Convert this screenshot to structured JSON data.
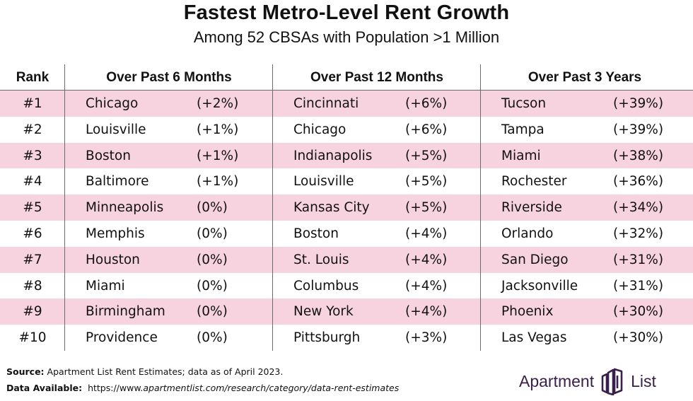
{
  "title": "Fastest Metro-Level Rent Growth",
  "subtitle": "Among 52 CBSAs with Population >1 Million",
  "headers": {
    "rank": "Rank",
    "col1": "Over Past 6 Months",
    "col2": "Over Past 12 Months",
    "col3": "Over Past 3 Years"
  },
  "rows": [
    {
      "rank": "#1",
      "c1": "Chicago",
      "p1": "(+2%)",
      "c2": "Cincinnati",
      "p2": "(+6%)",
      "c3": "Tucson",
      "p3": "(+39%)"
    },
    {
      "rank": "#2",
      "c1": "Louisville",
      "p1": "(+1%)",
      "c2": "Chicago",
      "p2": "(+6%)",
      "c3": "Tampa",
      "p3": "(+39%)"
    },
    {
      "rank": "#3",
      "c1": "Boston",
      "p1": "(+1%)",
      "c2": "Indianapolis",
      "p2": "(+5%)",
      "c3": "Miami",
      "p3": "(+38%)"
    },
    {
      "rank": "#4",
      "c1": "Baltimore",
      "p1": "(+1%)",
      "c2": "Louisville",
      "p2": "(+5%)",
      "c3": "Rochester",
      "p3": "(+36%)"
    },
    {
      "rank": "#5",
      "c1": "Minneapolis",
      "p1": "(0%)",
      "c2": "Kansas City",
      "p2": "(+5%)",
      "c3": "Riverside",
      "p3": "(+34%)"
    },
    {
      "rank": "#6",
      "c1": "Memphis",
      "p1": "(0%)",
      "c2": "Boston",
      "p2": "(+4%)",
      "c3": "Orlando",
      "p3": "(+32%)"
    },
    {
      "rank": "#7",
      "c1": "Houston",
      "p1": "(0%)",
      "c2": "St. Louis",
      "p2": "(+4%)",
      "c3": "San Diego",
      "p3": "(+31%)"
    },
    {
      "rank": "#8",
      "c1": "Miami",
      "p1": "(0%)",
      "c2": "Columbus",
      "p2": "(+4%)",
      "c3": "Jacksonville",
      "p3": "(+31%)"
    },
    {
      "rank": "#9",
      "c1": "Birmingham",
      "p1": "(0%)",
      "c2": "New York",
      "p2": "(+4%)",
      "c3": "Phoenix",
      "p3": "(+30%)"
    },
    {
      "rank": "#10",
      "c1": "Providence",
      "p1": "(0%)",
      "c2": "Pittsburgh",
      "p2": "(+3%)",
      "c3": "Las Vegas",
      "p3": "(+30%)"
    }
  ],
  "footer": {
    "source_label": "Source:",
    "source_text": "Apartment List Rent Estimates; data as of April 2023.",
    "available_label": "Data Available:",
    "available_url_prefix": "https://www.",
    "available_url_rest": "apartmentlist.com/research/category/data-rent-estimates"
  },
  "logo": {
    "word1": "Apartment",
    "word2": "List",
    "icon": "apartment-list-logo-mark"
  },
  "colors": {
    "shaded_row": "#f7d3df",
    "logo": "#3a1f4a"
  }
}
